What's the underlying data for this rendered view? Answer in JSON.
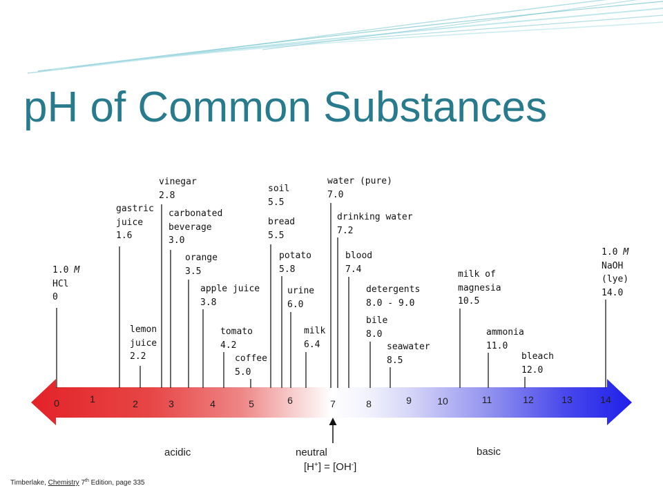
{
  "slide": {
    "title": "pH of Common Substances",
    "title_color": "#287a8d",
    "citation": {
      "author": "Timberlake,",
      "book": "Chemistry",
      "edition_number": "7",
      "edition_suffix": "th",
      "rest": "Edition, page 335"
    }
  },
  "scale": {
    "ticks": [
      "0",
      "1",
      "2",
      "3",
      "4",
      "5",
      "6",
      "7",
      "8",
      "9",
      "10",
      "11",
      "12",
      "13",
      "14"
    ],
    "acidic_label": "acidic",
    "basic_label": "basic",
    "neutral_label": "neutral",
    "neutral_equation": [
      "[H",
      "+",
      "] = [OH",
      "-",
      "]"
    ],
    "colors": {
      "acid": "#e32228",
      "neutral": "#ffffff",
      "base": "#1f1fea"
    }
  },
  "substances": [
    {
      "conc": "1.0",
      "unit": "M",
      "name": [
        "HCl"
      ],
      "ph": "0"
    },
    {
      "name": [
        "gastric",
        "juice"
      ],
      "ph": "1.6"
    },
    {
      "name": [
        "lemon",
        "juice"
      ],
      "ph": "2.2"
    },
    {
      "name": [
        "vinegar"
      ],
      "ph": "2.8"
    },
    {
      "name": [
        "carbonated",
        "beverage"
      ],
      "ph": "3.0"
    },
    {
      "name": [
        "orange"
      ],
      "ph": "3.5"
    },
    {
      "name": [
        "apple juice"
      ],
      "ph": "3.8"
    },
    {
      "name": [
        "tomato"
      ],
      "ph": "4.2"
    },
    {
      "name": [
        "coffee"
      ],
      "ph": "5.0"
    },
    {
      "name": [
        "soil"
      ],
      "ph": "5.5"
    },
    {
      "name": [
        "bread"
      ],
      "ph": "5.5"
    },
    {
      "name": [
        "potato"
      ],
      "ph": "5.8"
    },
    {
      "name": [
        "urine"
      ],
      "ph": "6.0"
    },
    {
      "name": [
        "milk"
      ],
      "ph": "6.4"
    },
    {
      "name": [
        "water (pure)"
      ],
      "ph": "7.0"
    },
    {
      "name": [
        "drinking water"
      ],
      "ph": "7.2"
    },
    {
      "name": [
        "blood"
      ],
      "ph": "7.4"
    },
    {
      "name": [
        "detergents"
      ],
      "ph": "8.0 - 9.0"
    },
    {
      "name": [
        "bile"
      ],
      "ph": "8.0"
    },
    {
      "name": [
        "seawater"
      ],
      "ph": "8.5"
    },
    {
      "name": [
        "milk of",
        "magnesia"
      ],
      "ph": "10.5"
    },
    {
      "name": [
        "ammonia"
      ],
      "ph": "11.0"
    },
    {
      "name": [
        "bleach"
      ],
      "ph": "12.0"
    },
    {
      "conc": "1.0",
      "unit": "M",
      "name": [
        "NaOH",
        "(lye)"
      ],
      "ph": "14.0"
    }
  ]
}
